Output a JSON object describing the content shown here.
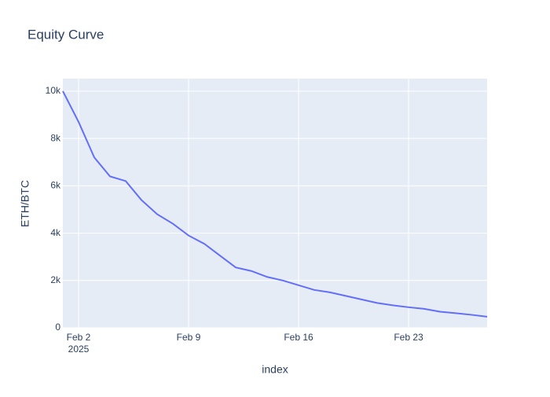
{
  "chart_data": {
    "type": "line",
    "title": "Equity Curve",
    "x_label": "index",
    "y_label": "ETH/BTC",
    "x": [
      "2025-02-01",
      "2025-02-02",
      "2025-02-03",
      "2025-02-04",
      "2025-02-05",
      "2025-02-06",
      "2025-02-07",
      "2025-02-08",
      "2025-02-09",
      "2025-02-10",
      "2025-02-11",
      "2025-02-12",
      "2025-02-13",
      "2025-02-14",
      "2025-02-15",
      "2025-02-16",
      "2025-02-17",
      "2025-02-18",
      "2025-02-19",
      "2025-02-20",
      "2025-02-21",
      "2025-02-22",
      "2025-02-23",
      "2025-02-24",
      "2025-02-25",
      "2025-02-26",
      "2025-02-27",
      "2025-02-28"
    ],
    "series": [
      {
        "name": "ETH/BTC",
        "color": "#636efa",
        "values": [
          10000,
          8700,
          7200,
          6400,
          6200,
          5400,
          4800,
          4400,
          3900,
          3550,
          3050,
          2550,
          2400,
          2150,
          2000,
          1800,
          1600,
          1500,
          1350,
          1200,
          1050,
          950,
          870,
          800,
          680,
          620,
          550,
          470
        ]
      }
    ],
    "xlim": [
      "2025-02-01",
      "2025-02-28"
    ],
    "xticks": [
      {
        "value": "2025-02-02",
        "label": "Feb 2"
      },
      {
        "value": "2025-02-09",
        "label": "Feb 9"
      },
      {
        "value": "2025-02-16",
        "label": "Feb 16"
      },
      {
        "value": "2025-02-23",
        "label": "Feb 23"
      }
    ],
    "x_year_label": "2025",
    "ylim": [
      0,
      10530
    ],
    "yticks": [
      0,
      {
        "value": 2000,
        "label": "2k"
      },
      {
        "value": 4000,
        "label": "4k"
      },
      {
        "value": 6000,
        "label": "6k"
      },
      {
        "value": 8000,
        "label": "8k"
      },
      {
        "value": 10000,
        "label": "10k"
      }
    ],
    "grid": true,
    "background": "#e5ecf6"
  }
}
